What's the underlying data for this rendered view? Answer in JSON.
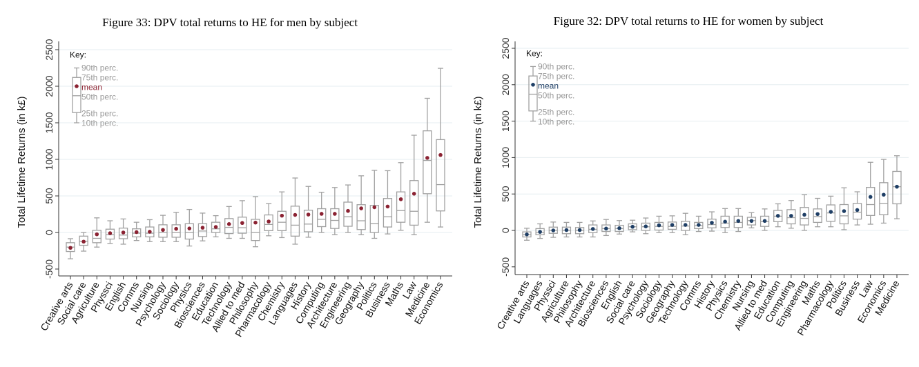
{
  "chart_data": [
    {
      "type": "box",
      "title": "Figure 33: DPV total returns to HE for men by subject",
      "ylabel": "Total Lifetime Returns (in k£)",
      "xlabel": "",
      "ylim": [
        -500,
        2500
      ],
      "yticks": [
        -500,
        0,
        500,
        1000,
        1500,
        2000,
        2500
      ],
      "grid": true,
      "mean_color": "#8b2232",
      "key": {
        "title": "Key:",
        "labels": [
          "90th perc.",
          "75th perc.",
          "mean",
          "50th perc.",
          "25th perc.",
          "10th perc."
        ],
        "p10": 1500,
        "p25": 1640,
        "p50": 1870,
        "p75": 2120,
        "p90": 2250,
        "mean": 2000
      },
      "stats_order": [
        "p10",
        "p25",
        "p50",
        "p75",
        "p90",
        "mean"
      ],
      "categories": [
        "Creative arts",
        "Social care",
        "Agriculture",
        "Physsci",
        "English",
        "Comms",
        "Nursing",
        "Psychology",
        "Sociology",
        "Physics",
        "Biosciences",
        "Education",
        "Technology",
        "Allied to med",
        "Philosophy",
        "Pharmacology",
        "Chemistry",
        "Languages",
        "History",
        "Computing",
        "Architecture",
        "Engineering",
        "Geography",
        "Politics",
        "Business",
        "Maths",
        "Law",
        "Medicine",
        "Economics"
      ],
      "values": [
        [
          -360,
          -260,
          -200,
          -140,
          -85,
          -210
        ],
        [
          -255,
          -175,
          -120,
          -50,
          0,
          -125
        ],
        [
          -200,
          -140,
          -80,
          30,
          200,
          -25
        ],
        [
          -150,
          -90,
          -30,
          45,
          160,
          -10
        ],
        [
          -160,
          -85,
          -35,
          60,
          185,
          0
        ],
        [
          -110,
          -60,
          -10,
          50,
          140,
          5
        ],
        [
          -125,
          -60,
          -10,
          75,
          175,
          10
        ],
        [
          -125,
          -65,
          0,
          105,
          235,
          35
        ],
        [
          -125,
          -65,
          0,
          105,
          275,
          50
        ],
        [
          -185,
          -90,
          0,
          120,
          315,
          55
        ],
        [
          -115,
          -55,
          20,
          120,
          265,
          65
        ],
        [
          -60,
          0,
          50,
          140,
          230,
          75
        ],
        [
          -80,
          -15,
          70,
          190,
          355,
          115
        ],
        [
          -80,
          -10,
          65,
          210,
          435,
          130
        ],
        [
          -195,
          -110,
          0,
          180,
          490,
          135
        ],
        [
          -45,
          25,
          110,
          240,
          395,
          150
        ],
        [
          -70,
          25,
          140,
          290,
          555,
          230
        ],
        [
          -160,
          -50,
          100,
          360,
          745,
          240
        ],
        [
          -65,
          10,
          115,
          305,
          630,
          245
        ],
        [
          0,
          80,
          180,
          325,
          550,
          255
        ],
        [
          -30,
          55,
          165,
          325,
          615,
          255
        ],
        [
          0,
          85,
          215,
          415,
          650,
          295
        ],
        [
          -30,
          40,
          160,
          380,
          775,
          330
        ],
        [
          -80,
          0,
          120,
          370,
          850,
          345
        ],
        [
          -20,
          75,
          215,
          465,
          845,
          355
        ],
        [
          30,
          140,
          300,
          555,
          955,
          455
        ],
        [
          -30,
          100,
          290,
          710,
          1330,
          530
        ],
        [
          140,
          530,
          985,
          1390,
          1835,
          1020
        ],
        [
          75,
          295,
          655,
          1270,
          2245,
          1060
        ]
      ]
    },
    {
      "type": "box",
      "title": "Figure 32: DPV total returns to HE for women by subject",
      "ylabel": "Total Lifetime Returns (in k£)",
      "xlabel": "",
      "ylim": [
        -500,
        2500
      ],
      "yticks": [
        -500,
        0,
        500,
        1000,
        1500,
        2000,
        2500
      ],
      "grid": true,
      "mean_color": "#1f3f66",
      "key": {
        "title": "Key:",
        "labels": [
          "90th perc.",
          "75th perc.",
          "mean",
          "50th perc.",
          "25th perc.",
          "10th perc."
        ],
        "p10": 1500,
        "p25": 1640,
        "p50": 1870,
        "p75": 2120,
        "p90": 2250,
        "mean": 2000
      },
      "stats_order": [
        "p10",
        "p25",
        "p50",
        "p75",
        "p90",
        "mean"
      ],
      "categories": [
        "Creative arts",
        "Languages",
        "Physsci",
        "Agriculture",
        "Philosophy",
        "Architecture",
        "Biosciences",
        "English",
        "Social care",
        "Psychology",
        "Sociology",
        "Geography",
        "Technology",
        "Comms",
        "History",
        "Physics",
        "Chemistry",
        "Nursing",
        "Allied to med",
        "Education",
        "Computing",
        "Engineering",
        "Maths",
        "Pharmacology",
        "Politics",
        "Business",
        "Law",
        "Economics",
        "Medicine"
      ],
      "values": [
        [
          -135,
          -90,
          -60,
          -20,
          30,
          -55
        ],
        [
          -110,
          -60,
          -25,
          25,
          90,
          -20
        ],
        [
          -95,
          -40,
          0,
          45,
          115,
          0
        ],
        [
          -90,
          -45,
          0,
          45,
          110,
          5
        ],
        [
          -90,
          -45,
          0,
          40,
          110,
          5
        ],
        [
          -90,
          -30,
          15,
          75,
          130,
          20
        ],
        [
          -70,
          -15,
          25,
          75,
          150,
          25
        ],
        [
          -50,
          -15,
          25,
          70,
          135,
          30
        ],
        [
          -20,
          10,
          50,
          90,
          140,
          50
        ],
        [
          -45,
          0,
          50,
          100,
          170,
          55
        ],
        [
          -30,
          5,
          55,
          110,
          195,
          70
        ],
        [
          -30,
          15,
          55,
          115,
          200,
          75
        ],
        [
          -60,
          0,
          60,
          125,
          235,
          75
        ],
        [
          -15,
          25,
          65,
          110,
          195,
          75
        ],
        [
          -10,
          35,
          80,
          155,
          255,
          105
        ],
        [
          -30,
          40,
          100,
          195,
          300,
          120
        ],
        [
          -15,
          40,
          110,
          195,
          300,
          130
        ],
        [
          35,
          75,
          135,
          180,
          245,
          130
        ],
        [
          0,
          55,
          120,
          195,
          295,
          130
        ],
        [
          50,
          120,
          195,
          275,
          365,
          200
        ],
        [
          30,
          90,
          175,
          285,
          410,
          200
        ],
        [
          0,
          75,
          165,
          315,
          490,
          215
        ],
        [
          50,
          110,
          190,
          295,
          440,
          225
        ],
        [
          50,
          125,
          240,
          350,
          470,
          255
        ],
        [
          10,
          90,
          200,
          355,
          585,
          265
        ],
        [
          75,
          155,
          250,
          370,
          530,
          280
        ],
        [
          85,
          205,
          355,
          590,
          935,
          460
        ],
        [
          100,
          215,
          370,
          655,
          975,
          490
        ],
        [
          160,
          365,
          600,
          810,
          1025,
          600
        ]
      ]
    }
  ]
}
